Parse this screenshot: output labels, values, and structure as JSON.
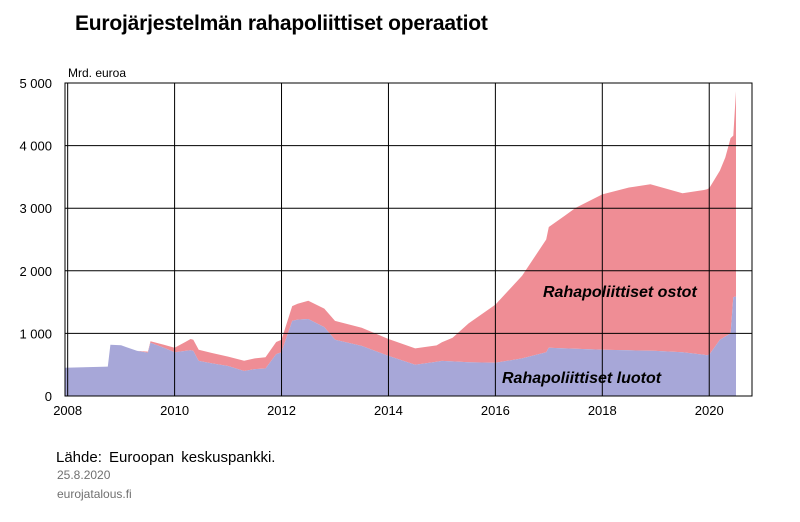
{
  "header": {
    "title": "Eurojärjestelmän rahapoliittiset operaatiot"
  },
  "footer": {
    "source": "Lähde: Euroopan keskuspankki.",
    "date": "25.8.2020",
    "site": "eurojatalous.fi"
  },
  "colors": {
    "ostot": "#ef8d95",
    "luotot": "#a7a7d8",
    "grid": "#000000"
  },
  "chart_data": {
    "type": "area",
    "stacked": true,
    "ylabel": "Mrd. euroa",
    "ylim": [
      0,
      5000
    ],
    "xlim": [
      2007.95,
      2020.8
    ],
    "y_ticks": [
      0,
      1000,
      2000,
      3000,
      4000,
      5000
    ],
    "y_tick_labels": [
      "0",
      "1 000",
      "2 000",
      "3 000",
      "4 000",
      "5 000"
    ],
    "x_ticks": [
      2008,
      2010,
      2012,
      2014,
      2016,
      2018,
      2020
    ],
    "x_tick_labels": [
      "2008",
      "2010",
      "2012",
      "2014",
      "2016",
      "2018",
      "2020"
    ],
    "grid": true,
    "series": [
      {
        "name": "Rahapoliittiset luotot",
        "x": [
          2007.95,
          2008.3,
          2008.75,
          2008.8,
          2009.0,
          2009.3,
          2009.5,
          2009.55,
          2009.8,
          2010.0,
          2010.2,
          2010.3,
          2010.35,
          2010.45,
          2010.7,
          2011.0,
          2011.3,
          2011.5,
          2011.7,
          2011.9,
          2012.0,
          2012.2,
          2012.3,
          2012.5,
          2012.8,
          2013.0,
          2013.5,
          2014.0,
          2014.5,
          2015.0,
          2015.5,
          2016.0,
          2016.5,
          2016.95,
          2017.0,
          2017.3,
          2018.0,
          2019.0,
          2019.5,
          2019.9,
          2019.95,
          2020.0,
          2020.2,
          2020.3,
          2020.4,
          2020.45,
          2020.5
        ],
        "values": [
          450,
          460,
          470,
          820,
          810,
          720,
          690,
          850,
          770,
          700,
          720,
          730,
          720,
          560,
          520,
          480,
          400,
          430,
          440,
          670,
          700,
          1200,
          1220,
          1230,
          1100,
          900,
          800,
          640,
          500,
          560,
          540,
          530,
          600,
          700,
          770,
          760,
          740,
          720,
          700,
          660,
          650,
          660,
          900,
          950,
          1000,
          1580,
          1590
        ]
      },
      {
        "name": "Rahapoliittiset ostot",
        "x": [
          2007.95,
          2009.3,
          2009.5,
          2010.0,
          2010.3,
          2010.45,
          2011.0,
          2011.7,
          2012.0,
          2012.5,
          2013.0,
          2013.5,
          2014.0,
          2014.5,
          2014.9,
          2015.2,
          2015.5,
          2016.0,
          2016.5,
          2016.95,
          2017.0,
          2017.5,
          2018.0,
          2018.5,
          2018.9,
          2019.5,
          2019.9,
          2019.95,
          2020.0,
          2020.2,
          2020.3,
          2020.4,
          2020.45,
          2020.5
        ],
        "values": [
          0,
          0,
          20,
          70,
          180,
          180,
          150,
          180,
          200,
          290,
          300,
          290,
          270,
          260,
          260,
          380,
          620,
          930,
          1320,
          1800,
          1930,
          2250,
          2480,
          2600,
          2660,
          2540,
          2630,
          2650,
          2660,
          2700,
          2860,
          3120,
          2580,
          3280
        ]
      }
    ],
    "annotations": [
      "Rahapoliittiset ostot",
      "Rahapoliittiset luotot"
    ]
  }
}
